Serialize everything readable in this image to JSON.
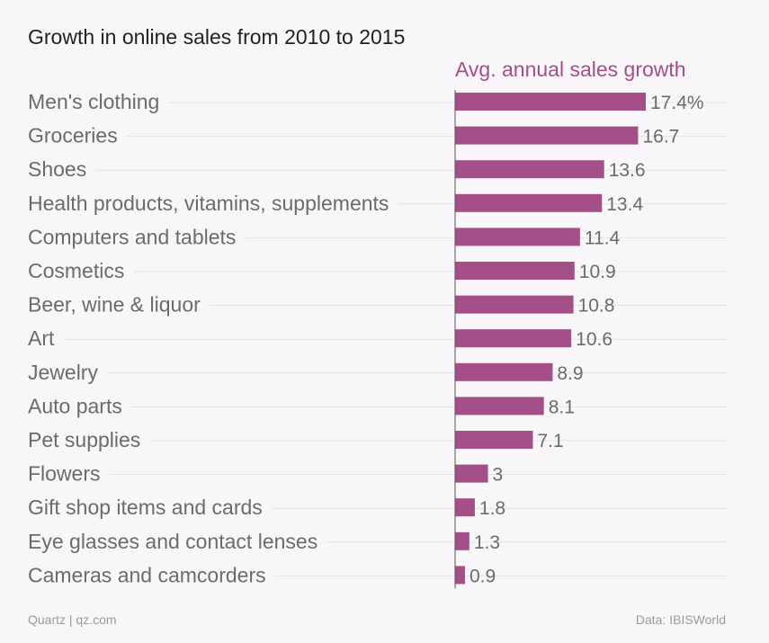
{
  "chart_data": {
    "type": "bar",
    "orientation": "horizontal",
    "title": "Growth in online sales from 2010 to 2015",
    "series_label": "Avg. annual sales growth",
    "unit": "%",
    "categories": [
      "Men's clothing",
      "Groceries",
      "Shoes",
      "Health products, vitamins, supplements",
      "Computers and tablets",
      "Cosmetics",
      "Beer, wine & liquor",
      "Art",
      "Jewelry",
      "Auto parts",
      "Pet supplies",
      "Flowers",
      "Gift shop items and cards",
      "Eye glasses and contact lenses",
      "Cameras and camcorders"
    ],
    "values": [
      17.4,
      16.7,
      13.6,
      13.4,
      11.4,
      10.9,
      10.8,
      10.6,
      8.9,
      8.1,
      7.1,
      3,
      1.8,
      1.3,
      0.9
    ],
    "value_labels": [
      "17.4%",
      "16.7",
      "13.6",
      "13.4",
      "11.4",
      "10.9",
      "10.8",
      "10.6",
      "8.9",
      "8.1",
      "7.1",
      "3",
      "1.8",
      "1.3",
      "0.9"
    ],
    "xlim": [
      0,
      17.4
    ],
    "grid": false
  },
  "colors": {
    "bar": "#a44f87",
    "category_text": "#6b6b6b",
    "value_text": "#6b6b6b",
    "title_text": "#222222",
    "guide_line": "#e4e1e5",
    "axis_line": "#555555"
  },
  "footer": {
    "source_left": "Quartz | qz.com",
    "source_right": "Data: IBISWorld"
  }
}
